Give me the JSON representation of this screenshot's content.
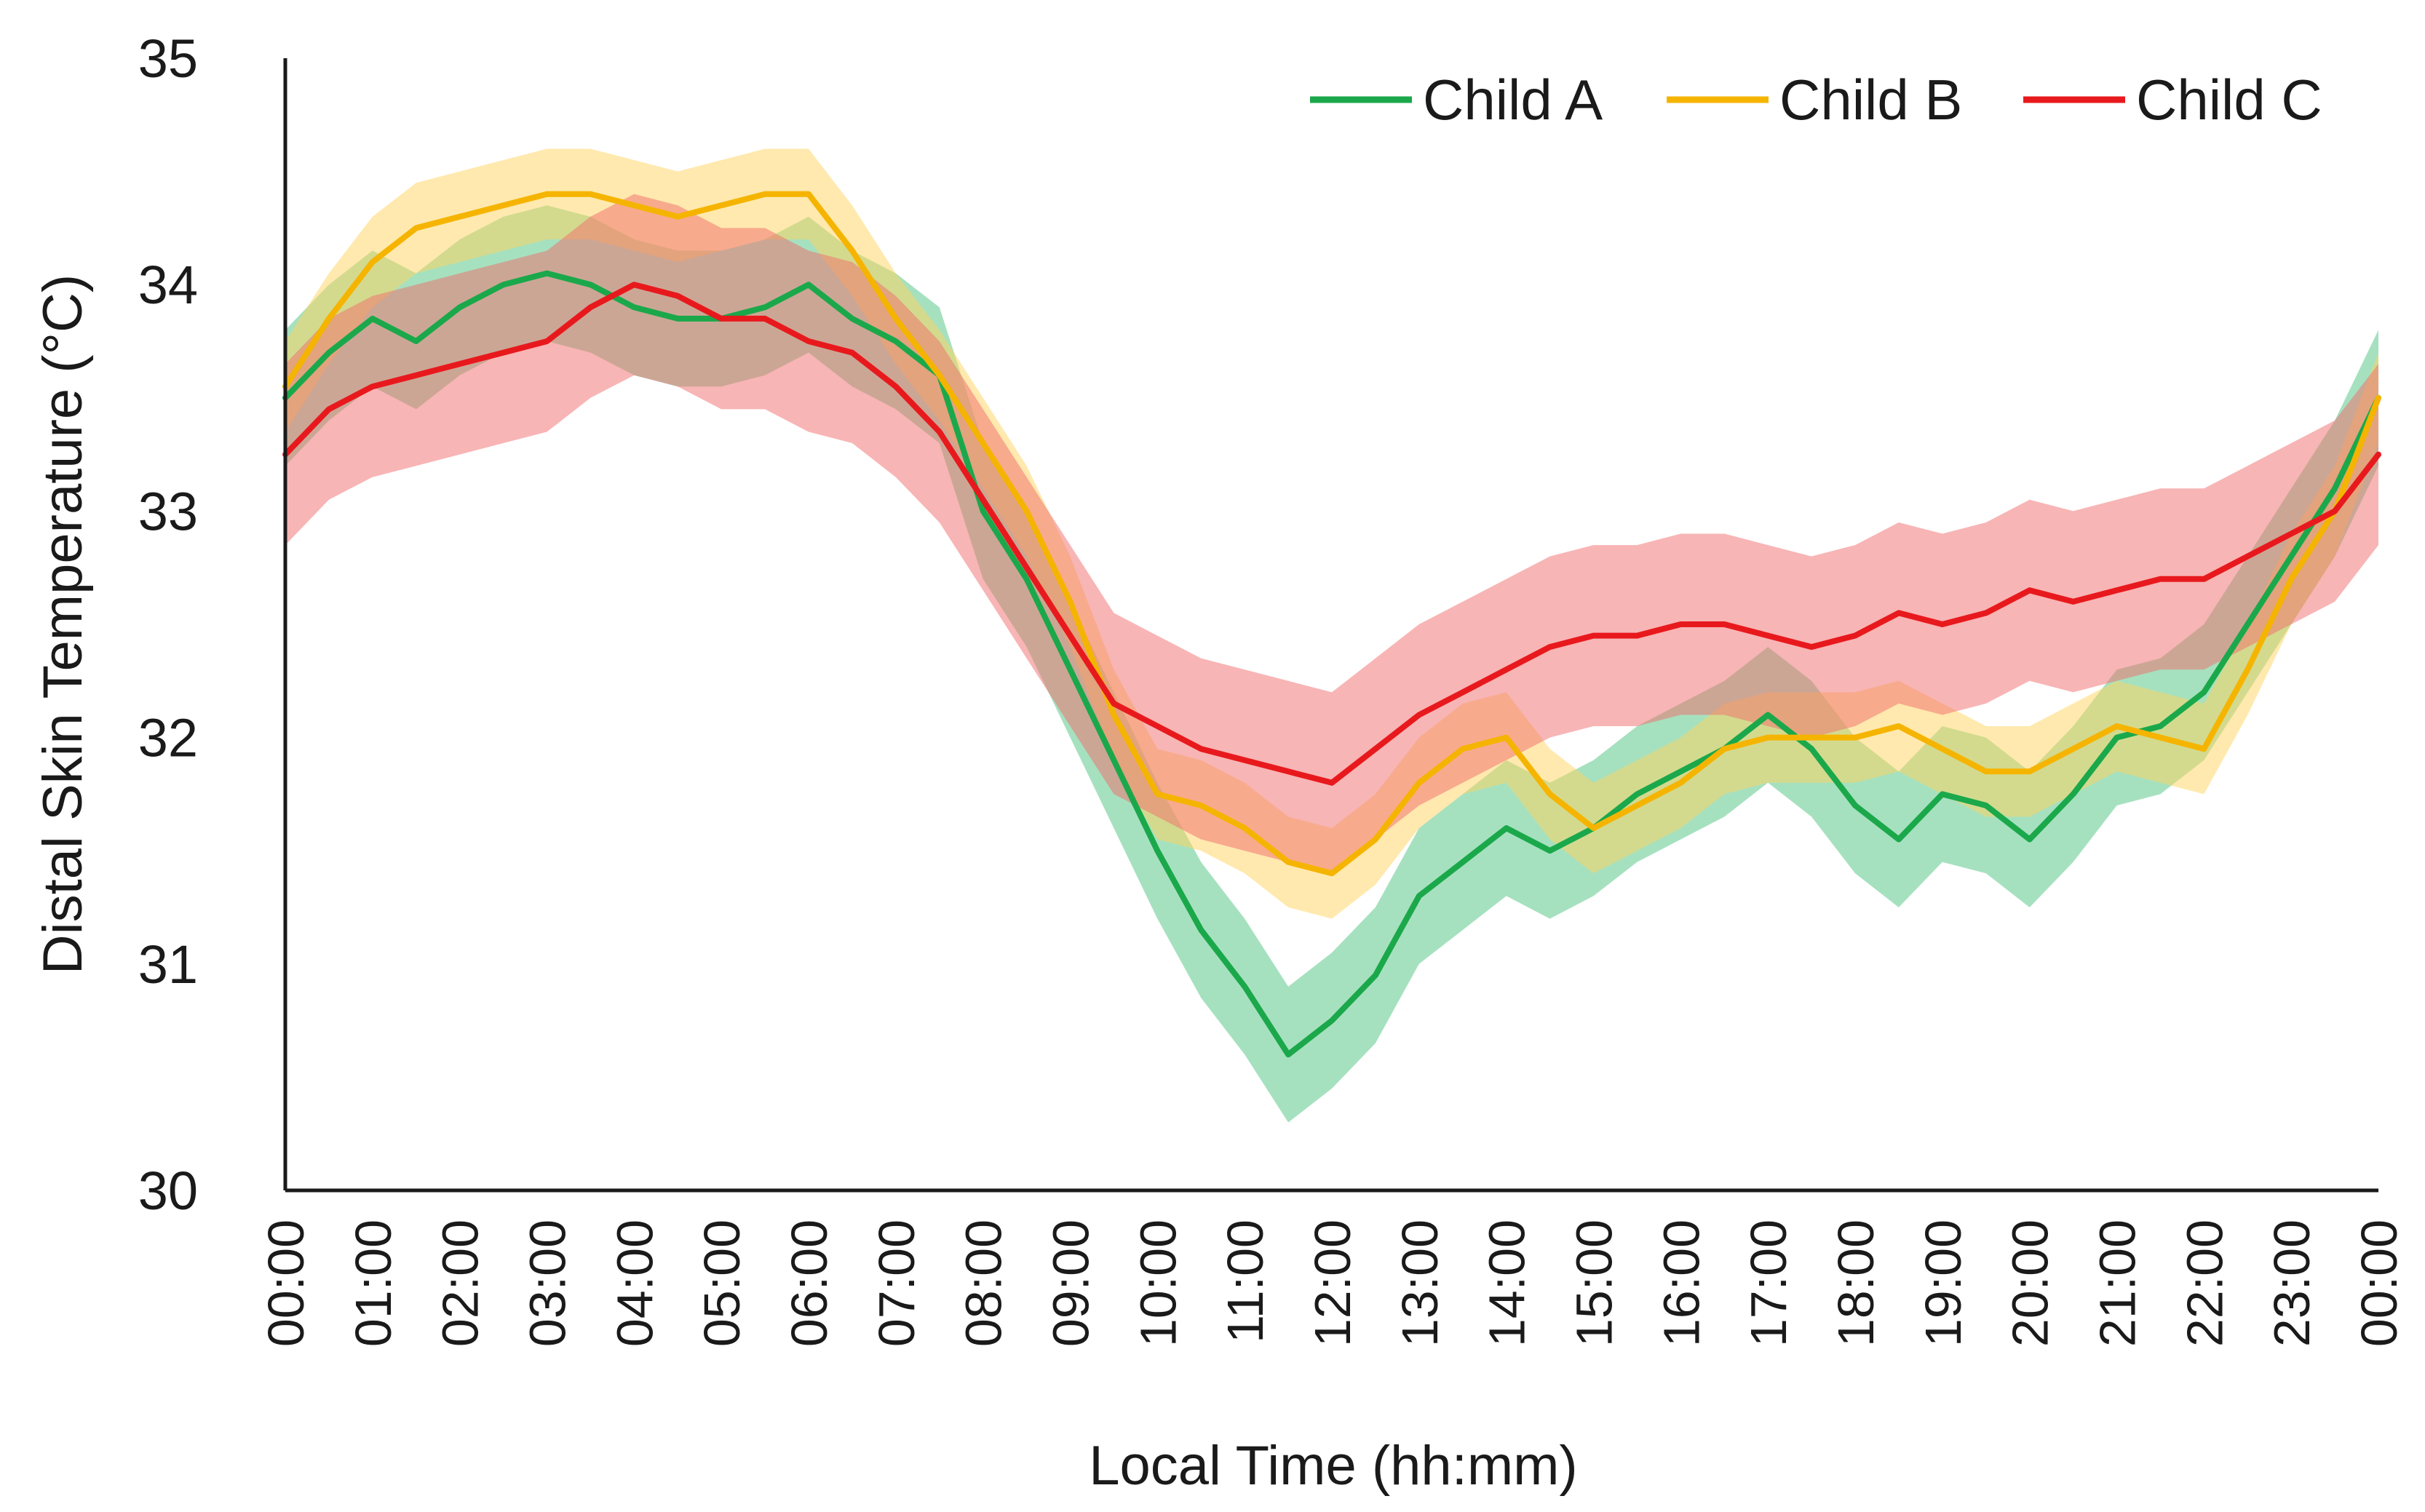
{
  "chart_data": {
    "type": "line",
    "title": "",
    "xlabel": "Local Time (hh:mm)",
    "ylabel": "Distal Skin Temperature (°C)",
    "ylim": [
      30,
      35
    ],
    "yticks": [
      30,
      31,
      32,
      33,
      34,
      35
    ],
    "xlim": [
      0,
      24
    ],
    "xtick_labels": [
      "00:00",
      "01:00",
      "02:00",
      "03:00",
      "04:00",
      "05:00",
      "06:00",
      "07:00",
      "08:00",
      "09:00",
      "10:00",
      "11:00",
      "12:00",
      "13:00",
      "14:00",
      "15:00",
      "16:00",
      "17:00",
      "18:00",
      "19:00",
      "20:00",
      "21:00",
      "22:00",
      "23:00",
      "00:00"
    ],
    "grid": false,
    "legend_position": "top-right",
    "x_hours": [
      0,
      0.5,
      1,
      1.5,
      2,
      2.5,
      3,
      3.5,
      4,
      4.5,
      5,
      5.5,
      6,
      6.5,
      7,
      7.5,
      8,
      8.5,
      9,
      9.5,
      10,
      10.5,
      11,
      11.5,
      12,
      12.5,
      13,
      13.5,
      14,
      14.5,
      15,
      15.5,
      16,
      16.5,
      17,
      17.5,
      18,
      18.5,
      19,
      19.5,
      20,
      20.5,
      21,
      21.5,
      22,
      22.5,
      23,
      23.5,
      24
    ],
    "series": [
      {
        "name": "Child A",
        "color": "#1aa84b",
        "band_color": "#5cc98a",
        "band_halfwidth": 0.3,
        "values": [
          33.5,
          33.7,
          33.85,
          33.75,
          33.9,
          34.0,
          34.05,
          34.0,
          33.9,
          33.85,
          33.85,
          33.9,
          34.0,
          33.85,
          33.75,
          33.6,
          33.0,
          32.7,
          32.3,
          31.9,
          31.5,
          31.15,
          30.9,
          30.6,
          30.75,
          30.95,
          31.3,
          31.45,
          31.6,
          31.5,
          31.6,
          31.75,
          31.85,
          31.95,
          32.1,
          31.95,
          31.7,
          31.55,
          31.75,
          31.7,
          31.55,
          31.75,
          32.0,
          32.05,
          32.2,
          32.5,
          32.8,
          33.1,
          33.5
        ]
      },
      {
        "name": "Child B",
        "color": "#f5b400",
        "band_color": "#ffd35e",
        "band_halfwidth": 0.2,
        "values": [
          33.55,
          33.85,
          34.1,
          34.25,
          34.3,
          34.35,
          34.4,
          34.4,
          34.35,
          34.3,
          34.35,
          34.4,
          34.4,
          34.15,
          33.85,
          33.6,
          33.3,
          33.0,
          32.6,
          32.1,
          31.75,
          31.7,
          31.6,
          31.45,
          31.4,
          31.55,
          31.8,
          31.95,
          32.0,
          31.75,
          31.6,
          31.7,
          31.8,
          31.95,
          32.0,
          32.0,
          32.0,
          32.05,
          31.95,
          31.85,
          31.85,
          31.95,
          32.05,
          32.0,
          31.95,
          32.3,
          32.7,
          33.0,
          33.5
        ]
      },
      {
        "name": "Child C",
        "color": "#e8191d",
        "band_color": "#f26b6b",
        "band_halfwidth": 0.4,
        "values": [
          33.25,
          33.45,
          33.55,
          33.6,
          33.65,
          33.7,
          33.75,
          33.9,
          34.0,
          33.95,
          33.85,
          33.85,
          33.75,
          33.7,
          33.55,
          33.35,
          33.05,
          32.75,
          32.45,
          32.15,
          32.05,
          31.95,
          31.9,
          31.85,
          31.8,
          31.95,
          32.1,
          32.2,
          32.3,
          32.4,
          32.45,
          32.45,
          32.5,
          32.5,
          32.45,
          32.4,
          32.45,
          32.55,
          32.5,
          32.55,
          32.65,
          32.6,
          32.65,
          32.7,
          32.7,
          32.8,
          32.9,
          33.0,
          33.25
        ]
      }
    ]
  }
}
